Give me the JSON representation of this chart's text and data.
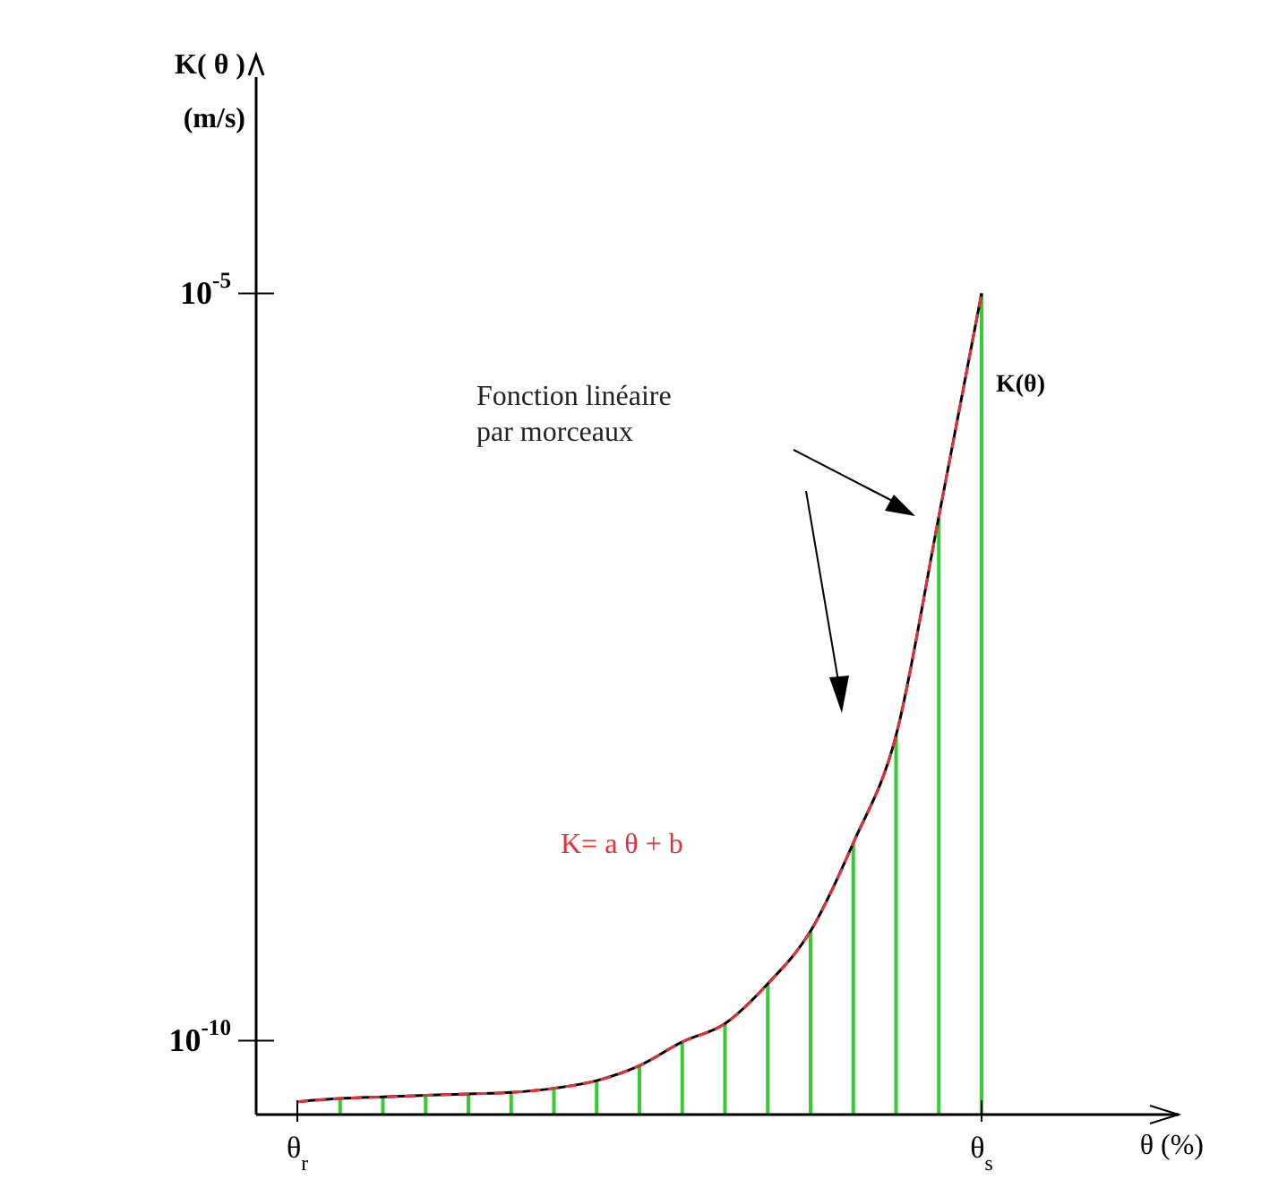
{
  "chart_data": {
    "type": "line",
    "log": "y",
    "xlabel": "θ (%)",
    "ylabel": "K( θ )\n(m/s)",
    "categories": [
      "θ$_{r}$",
      null,
      null,
      null,
      null,
      null,
      null,
      null,
      null,
      null,
      null,
      null,
      null,
      null,
      null,
      null,
      "θ$_{s}$"
    ],
    "ylim": [
      3.2e-11,
      0.00028
    ],
    "yticks": [
      {
        "value": 1e-10,
        "label": "10$^{-10}$"
      },
      {
        "value": 1e-05,
        "label": "10$^{-5}$"
      }
    ],
    "annotations": [
      "Fonction linéaire\npar morceaux",
      "K= a θ + b"
    ],
    "series": [
      {
        "name": "K(θ)",
        "color": "#000000",
        "values": [
          3.9e-11,
          4.1e-11,
          4.2e-11,
          4.3e-11,
          4.4e-11,
          4.5e-11,
          4.8e-11,
          5.4e-11,
          6.8e-11,
          9.8e-11,
          1.3e-10,
          2.4e-10,
          5.4e-10,
          2.1e-09,
          1.1e-08,
          3.2e-07,
          1e-05
        ]
      },
      {
        "color": "#e8303a",
        "line_style": "dashed",
        "values": [
          3.9e-11,
          4.1e-11,
          4.2e-11,
          4.3e-11,
          4.4e-11,
          4.5e-11,
          4.8e-11,
          5.4e-11,
          6.8e-11,
          9.8e-11,
          1.3e-10,
          2.4e-10,
          5.4e-10,
          2.1e-09,
          1.1e-08,
          3.2e-07,
          1e-05
        ]
      },
      {
        "type": "bar",
        "color": "#33cc33",
        "values": [
          null,
          4.1e-11,
          4.2e-11,
          4.3e-11,
          4.4e-11,
          4.5e-11,
          4.8e-11,
          5.4e-11,
          6.8e-11,
          9.8e-11,
          1.3e-10,
          2.4e-10,
          5.4e-10,
          2.1e-09,
          1.1e-08,
          3.2e-07,
          1e-05
        ]
      }
    ]
  }
}
